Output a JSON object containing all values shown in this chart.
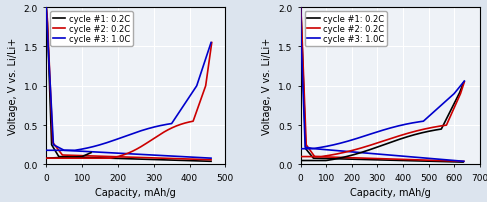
{
  "left_chart": {
    "xlabel": "Capacity, mAh/g",
    "ylabel": "Voltage, V vs. Li/Li+",
    "xlim": [
      0,
      500
    ],
    "ylim": [
      0.0,
      2.0
    ],
    "xticks": [
      0,
      100,
      200,
      300,
      400,
      500
    ],
    "yticks": [
      0.0,
      0.5,
      1.0,
      1.5,
      2.0
    ],
    "legend": [
      "cycle #1: 0.2C",
      "cycle #2: 0.2C",
      "cycle #3: 1.0C"
    ],
    "colors": [
      "#000000",
      "#cc0000",
      "#0000cc"
    ]
  },
  "right_chart": {
    "xlabel": "Capacity, mAh/g",
    "ylabel": "Voltage, V vs. Li/Li+",
    "xlim": [
      0,
      700
    ],
    "ylim": [
      0.0,
      2.0
    ],
    "xticks": [
      0,
      100,
      200,
      300,
      400,
      500,
      600,
      700
    ],
    "yticks": [
      0.0,
      0.5,
      1.0,
      1.5,
      2.0
    ],
    "legend": [
      "cycle #1: 0.2C",
      "cycle #2: 0.2C",
      "cycle #3: 1.0C"
    ],
    "colors": [
      "#000000",
      "#cc0000",
      "#0000cc"
    ]
  },
  "background_color": "#eef2f7",
  "grid_color": "#ffffff",
  "fontsize": 7,
  "linewidth": 1.2
}
